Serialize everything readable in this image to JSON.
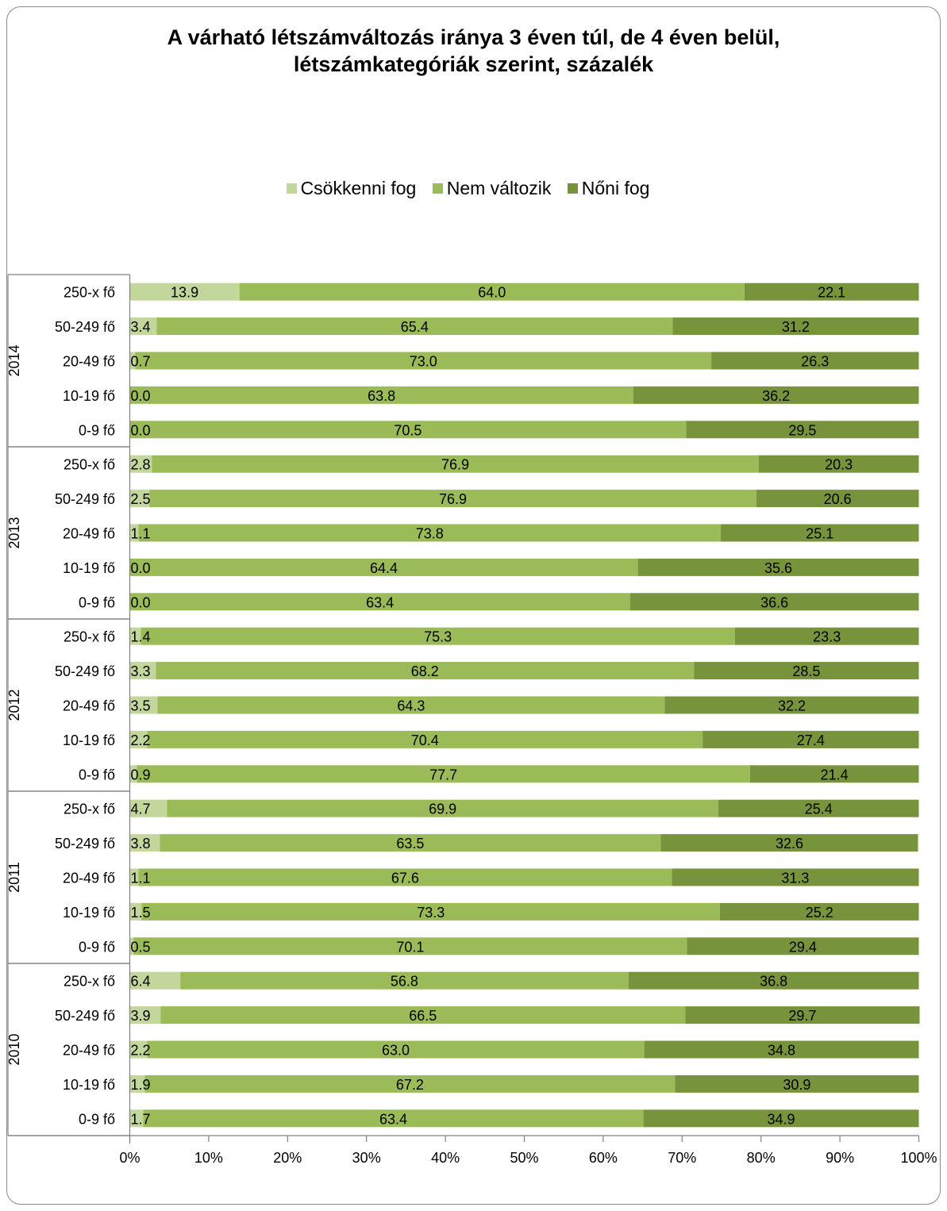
{
  "chart_data": {
    "type": "bar",
    "orientation": "horizontal",
    "stacked": "percent",
    "title": "A várható létszámváltozás iránya 3 éven túl, de 4 éven belül, létszámkategóriák szerint, százalék",
    "title_lines": [
      "A várható létszámváltozás iránya 3 éven túl, de 4 éven belül,",
      "létszámkategóriák szerint, százalék"
    ],
    "legend_position": "top",
    "grid": false,
    "xlim": [
      0,
      100
    ],
    "x_ticks": [
      "0%",
      "10%",
      "20%",
      "30%",
      "40%",
      "50%",
      "60%",
      "70%",
      "80%",
      "90%",
      "100%"
    ],
    "series": [
      {
        "name": "Csökkenni fog",
        "color": "#c3d69b"
      },
      {
        "name": "Nem változik",
        "color": "#9bbb59"
      },
      {
        "name": "Nőni fog",
        "color": "#77933c"
      }
    ],
    "groups": [
      {
        "year": "2014",
        "rows": [
          {
            "category": "250-x fő",
            "values": [
              13.9,
              64.0,
              22.1
            ],
            "labels": [
              "13.9",
              "64.0",
              "22.1"
            ]
          },
          {
            "category": "50-249 fő",
            "values": [
              3.4,
              65.4,
              31.2
            ],
            "labels": [
              "3.4",
              "65.4",
              "31.2"
            ]
          },
          {
            "category": "20-49 fő",
            "values": [
              0.7,
              73.0,
              26.3
            ],
            "labels": [
              "0.7",
              "73.0",
              "26.3"
            ]
          },
          {
            "category": "10-19 fő",
            "values": [
              0.0,
              63.8,
              36.2
            ],
            "labels": [
              "0.0",
              "63.8",
              "36.2"
            ]
          },
          {
            "category": "0-9 fő",
            "values": [
              0.0,
              70.5,
              29.5
            ],
            "labels": [
              "0.0",
              "70.5",
              "29.5"
            ]
          }
        ]
      },
      {
        "year": "2013",
        "rows": [
          {
            "category": "250-x fő",
            "values": [
              2.8,
              76.9,
              20.3
            ],
            "labels": [
              "2.8",
              "76.9",
              "20.3"
            ]
          },
          {
            "category": "50-249 fő",
            "values": [
              2.5,
              76.9,
              20.6
            ],
            "labels": [
              "2.5",
              "76.9",
              "20.6"
            ]
          },
          {
            "category": "20-49 fő",
            "values": [
              1.1,
              73.8,
              25.1
            ],
            "labels": [
              "1.1",
              "73.8",
              "25.1"
            ]
          },
          {
            "category": "10-19 fő",
            "values": [
              0.0,
              64.4,
              35.6
            ],
            "labels": [
              "0.0",
              "64.4",
              "35.6"
            ]
          },
          {
            "category": "0-9 fő",
            "values": [
              0.0,
              63.4,
              36.6
            ],
            "labels": [
              "0.0",
              "63.4",
              "36.6"
            ]
          }
        ]
      },
      {
        "year": "2012",
        "rows": [
          {
            "category": "250-x fő",
            "values": [
              1.4,
              75.3,
              23.3
            ],
            "labels": [
              "1.4",
              "75.3",
              "23.3"
            ]
          },
          {
            "category": "50-249 fő",
            "values": [
              3.3,
              68.2,
              28.5
            ],
            "labels": [
              "3.3",
              "68.2",
              "28.5"
            ]
          },
          {
            "category": "20-49 fő",
            "values": [
              3.5,
              64.3,
              32.2
            ],
            "labels": [
              "3.5",
              "64.3",
              "32.2"
            ]
          },
          {
            "category": "10-19 fő",
            "values": [
              2.2,
              70.4,
              27.4
            ],
            "labels": [
              "2.2",
              "70.4",
              "27.4"
            ]
          },
          {
            "category": "0-9 fő",
            "values": [
              0.9,
              77.7,
              21.4
            ],
            "labels": [
              "0.9",
              "77.7",
              "21.4"
            ]
          }
        ]
      },
      {
        "year": "2011",
        "rows": [
          {
            "category": "250-x fő",
            "values": [
              4.7,
              69.9,
              25.4
            ],
            "labels": [
              "4.7",
              "69.9",
              "25.4"
            ]
          },
          {
            "category": "50-249 fő",
            "values": [
              3.8,
              63.5,
              32.6
            ],
            "labels": [
              "3.8",
              "63.5",
              "32.6"
            ]
          },
          {
            "category": "20-49 fő",
            "values": [
              1.1,
              67.6,
              31.3
            ],
            "labels": [
              "1.1",
              "67.6",
              "31.3"
            ]
          },
          {
            "category": "10-19 fő",
            "values": [
              1.5,
              73.3,
              25.2
            ],
            "labels": [
              "1.5",
              "73.3",
              "25.2"
            ]
          },
          {
            "category": "0-9 fő",
            "values": [
              0.5,
              70.1,
              29.4
            ],
            "labels": [
              "0.5",
              "70.1",
              "29.4"
            ]
          }
        ]
      },
      {
        "year": "2010",
        "rows": [
          {
            "category": "250-x fő",
            "values": [
              6.4,
              56.8,
              36.8
            ],
            "labels": [
              "6.4",
              "56.8",
              "36.8"
            ]
          },
          {
            "category": "50-249 fő",
            "values": [
              3.9,
              66.5,
              29.7
            ],
            "labels": [
              "3.9",
              "66.5",
              "29.7"
            ]
          },
          {
            "category": "20-49 fő",
            "values": [
              2.2,
              63.0,
              34.8
            ],
            "labels": [
              "2.2",
              "63.0",
              "34.8"
            ]
          },
          {
            "category": "10-19 fő",
            "values": [
              1.9,
              67.2,
              30.9
            ],
            "labels": [
              "1.9",
              "67.2",
              "30.9"
            ]
          },
          {
            "category": "0-9 fő",
            "values": [
              1.7,
              63.4,
              34.9
            ],
            "labels": [
              "1.7",
              "63.4",
              "34.9"
            ]
          }
        ]
      }
    ]
  }
}
